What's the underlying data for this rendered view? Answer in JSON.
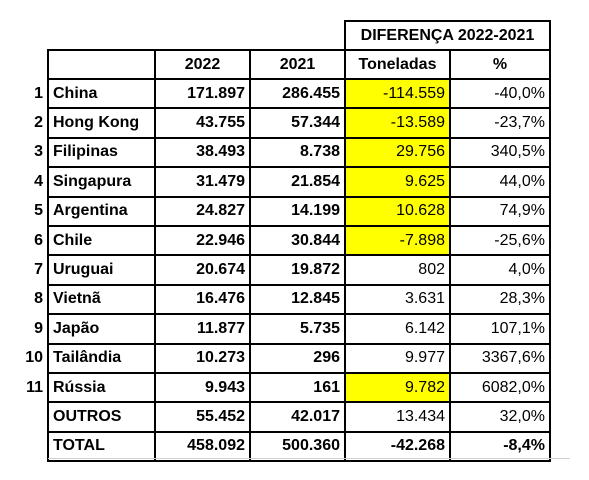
{
  "header": {
    "group_title": "DIFERENÇA 2022-2021",
    "columns": [
      "2022",
      "2021",
      "Toneladas",
      "%"
    ]
  },
  "rows": [
    {
      "rank": "1",
      "country": "China",
      "y2022": "171.897",
      "y2021": "286.455",
      "toneladas": "-114.559",
      "pct": "-40,0%",
      "highlight": true
    },
    {
      "rank": "2",
      "country": "Hong Kong",
      "y2022": "43.755",
      "y2021": "57.344",
      "toneladas": "-13.589",
      "pct": "-23,7%",
      "highlight": true
    },
    {
      "rank": "3",
      "country": "Filipinas",
      "y2022": "38.493",
      "y2021": "8.738",
      "toneladas": "29.756",
      "pct": "340,5%",
      "highlight": true
    },
    {
      "rank": "4",
      "country": "Singapura",
      "y2022": "31.479",
      "y2021": "21.854",
      "toneladas": "9.625",
      "pct": "44,0%",
      "highlight": true
    },
    {
      "rank": "5",
      "country": "Argentina",
      "y2022": "24.827",
      "y2021": "14.199",
      "toneladas": "10.628",
      "pct": "74,9%",
      "highlight": true
    },
    {
      "rank": "6",
      "country": "Chile",
      "y2022": "22.946",
      "y2021": "30.844",
      "toneladas": "-7.898",
      "pct": "-25,6%",
      "highlight": true
    },
    {
      "rank": "7",
      "country": "Uruguai",
      "y2022": "20.674",
      "y2021": "19.872",
      "toneladas": "802",
      "pct": "4,0%",
      "highlight": false
    },
    {
      "rank": "8",
      "country": "Vietnã",
      "y2022": "16.476",
      "y2021": "12.845",
      "toneladas": "3.631",
      "pct": "28,3%",
      "highlight": false
    },
    {
      "rank": "9",
      "country": "Japão",
      "y2022": "11.877",
      "y2021": "5.735",
      "toneladas": "6.142",
      "pct": "107,1%",
      "highlight": false
    },
    {
      "rank": "10",
      "country": "Tailândia",
      "y2022": "10.273",
      "y2021": "296",
      "toneladas": "9.977",
      "pct": "3367,6%",
      "highlight": false
    },
    {
      "rank": "11",
      "country": "Rússia",
      "y2022": "9.943",
      "y2021": "161",
      "toneladas": "9.782",
      "pct": "6082,0%",
      "highlight": true
    },
    {
      "country": "OUTROS",
      "y2022": "55.452",
      "y2021": "42.017",
      "toneladas": "13.434",
      "pct": "32,0%",
      "highlight": false
    },
    {
      "country": "TOTAL",
      "y2022": "458.092",
      "y2021": "500.360",
      "toneladas": "-42.268",
      "pct": "-8,4%",
      "highlight": false,
      "bold": true
    }
  ]
}
